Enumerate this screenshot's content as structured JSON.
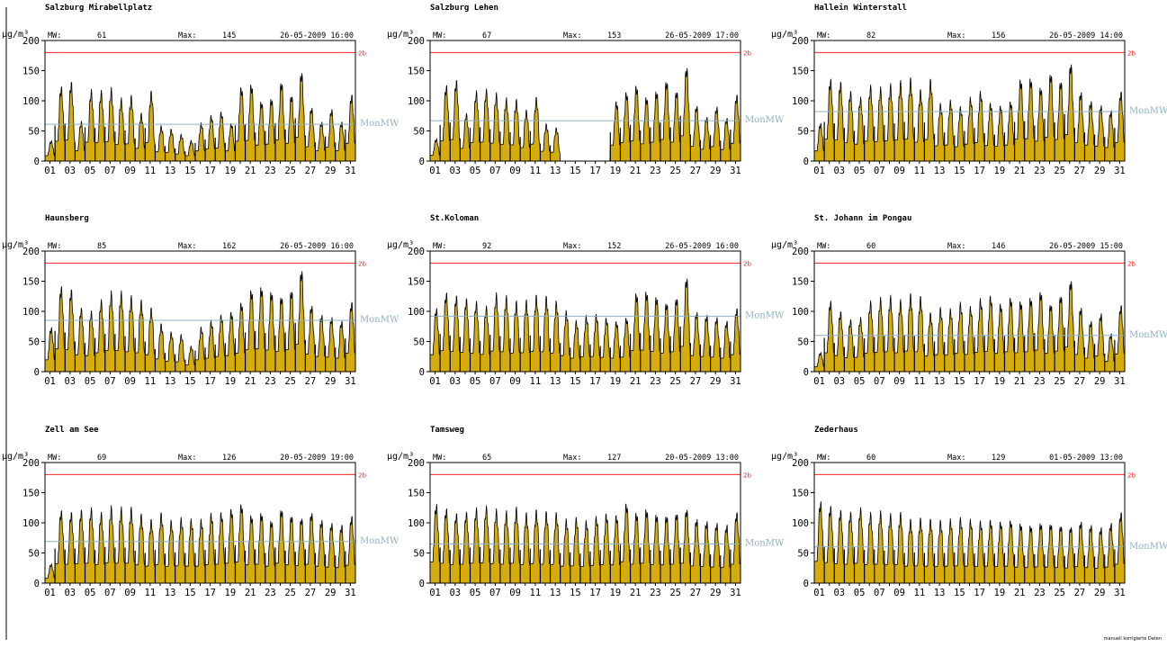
{
  "colors": {
    "fill": "#d4ac0d",
    "outline": "#000000",
    "limit": "#ff2222",
    "mean": "#8fb0c0"
  },
  "footnote": "manuell korrigierte Daten",
  "chart_data": [
    {
      "type": "area",
      "title": "Salzburg Mirabellplatz",
      "ylabel": "µg/m³",
      "mw_label": "MW:",
      "mw": "61",
      "max_label": "Max:",
      "max": "145",
      "max_time": "26-05-2009 16:00",
      "limit_label": "2b",
      "limit": 180,
      "mean_label": "MonMW",
      "mean": 61,
      "ylim": [
        0,
        200
      ],
      "yticks": [
        0,
        50,
        100,
        150,
        200
      ],
      "xticks": [
        "01",
        "03",
        "05",
        "07",
        "09",
        "11",
        "13",
        "15",
        "17",
        "19",
        "21",
        "23",
        "25",
        "27",
        "29",
        "31"
      ],
      "daily_max": [
        32,
        118,
        125,
        62,
        112,
        110,
        114,
        98,
        102,
        75,
        110,
        55,
        50,
        42,
        32,
        60,
        72,
        78,
        60,
        118,
        122,
        95,
        100,
        126,
        105,
        142,
        85,
        62,
        82,
        62,
        105
      ],
      "gap": null
    },
    {
      "type": "area",
      "title": "Salzburg Lehen",
      "ylabel": "µg/m³",
      "mw_label": "MW:",
      "mw": "67",
      "max_label": "Max:",
      "max": "153",
      "max_time": "26-05-2009 17:00",
      "limit_label": "2b",
      "limit": 180,
      "mean_label": "MonMW",
      "mean": 67,
      "ylim": [
        0,
        200
      ],
      "yticks": [
        0,
        50,
        100,
        150,
        200
      ],
      "xticks": [
        "01",
        "03",
        "05",
        "07",
        "09",
        "11",
        "13",
        "15",
        "17",
        "19",
        "21",
        "23",
        "25",
        "27",
        "29",
        "31"
      ],
      "daily_max": [
        35,
        120,
        128,
        75,
        110,
        112,
        106,
        98,
        96,
        80,
        100,
        58,
        52,
        0,
        0,
        0,
        0,
        0,
        95,
        110,
        120,
        102,
        112,
        128,
        112,
        150,
        88,
        70,
        86,
        68,
        105
      ],
      "gap": [
        13.0,
        17.5
      ]
    },
    {
      "type": "area",
      "title": "Hallein Winterstall",
      "ylabel": "µg/m³",
      "mw_label": "MW:",
      "mw": "82",
      "max_label": "Max:",
      "max": "156",
      "max_time": "26-05-2009 14:00",
      "limit_label": "2b",
      "limit": 180,
      "mean_label": "MonMW",
      "mean": 82,
      "ylim": [
        0,
        200
      ],
      "yticks": [
        0,
        50,
        100,
        150,
        200
      ],
      "xticks": [
        "01",
        "03",
        "05",
        "07",
        "09",
        "11",
        "13",
        "15",
        "17",
        "19",
        "21",
        "23",
        "25",
        "27",
        "29",
        "31"
      ],
      "daily_max": [
        60,
        130,
        125,
        110,
        100,
        118,
        115,
        120,
        125,
        130,
        112,
        128,
        90,
        95,
        85,
        100,
        110,
        92,
        88,
        95,
        130,
        132,
        118,
        140,
        128,
        156,
        110,
        95,
        88,
        80,
        110
      ],
      "gap": null
    },
    {
      "type": "area",
      "title": "Haunsberg",
      "ylabel": "µg/m³",
      "mw_label": "MW:",
      "mw": "85",
      "max_label": "Max:",
      "max": "162",
      "max_time": "26-05-2009 16:00",
      "limit_label": "2b",
      "limit": 180,
      "mean_label": "MonMW",
      "mean": 85,
      "ylim": [
        0,
        200
      ],
      "yticks": [
        0,
        50,
        100,
        150,
        200
      ],
      "xticks": [
        "01",
        "03",
        "05",
        "07",
        "09",
        "11",
        "13",
        "15",
        "17",
        "19",
        "21",
        "23",
        "25",
        "27",
        "29",
        "31"
      ],
      "daily_max": [
        70,
        135,
        130,
        100,
        95,
        112,
        125,
        125,
        118,
        112,
        100,
        75,
        62,
        58,
        40,
        70,
        80,
        90,
        95,
        110,
        130,
        135,
        128,
        120,
        130,
        162,
        105,
        90,
        86,
        80,
        110
      ],
      "gap": null
    },
    {
      "type": "area",
      "title": "St.Koloman",
      "ylabel": "µg/m³",
      "mw_label": "MW:",
      "mw": "92",
      "max_label": "Max:",
      "max": "152",
      "max_time": "26-05-2009 16:00",
      "limit_label": "2b",
      "limit": 180,
      "mean_label": "MonMW",
      "mean": 92,
      "ylim": [
        0,
        200
      ],
      "yticks": [
        0,
        50,
        100,
        150,
        200
      ],
      "xticks": [
        "01",
        "03",
        "05",
        "07",
        "09",
        "11",
        "13",
        "15",
        "17",
        "19",
        "21",
        "23",
        "25",
        "27",
        "29",
        "31"
      ],
      "daily_max": [
        100,
        125,
        120,
        115,
        110,
        102,
        122,
        118,
        110,
        112,
        120,
        118,
        110,
        95,
        80,
        88,
        90,
        85,
        80,
        86,
        125,
        128,
        120,
        110,
        118,
        150,
        95,
        90,
        86,
        80,
        100
      ],
      "gap": null
    },
    {
      "type": "area",
      "title": "St. Johann im Pongau",
      "ylabel": "µg/m³",
      "mw_label": "MW:",
      "mw": "60",
      "max_label": "Max:",
      "max": "146",
      "max_time": "26-05-2009 15:00",
      "limit_label": "2b",
      "limit": 180,
      "mean_label": "MonMW",
      "mean": 60,
      "ylim": [
        0,
        200
      ],
      "yticks": [
        0,
        50,
        100,
        150,
        200
      ],
      "xticks": [
        "01",
        "03",
        "05",
        "07",
        "09",
        "11",
        "13",
        "15",
        "17",
        "19",
        "21",
        "23",
        "25",
        "27",
        "29",
        "31"
      ],
      "daily_max": [
        30,
        112,
        95,
        82,
        85,
        110,
        115,
        118,
        112,
        122,
        118,
        92,
        100,
        98,
        108,
        102,
        115,
        120,
        108,
        118,
        112,
        118,
        128,
        108,
        122,
        146,
        102,
        80,
        92,
        60,
        105
      ],
      "gap": null
    },
    {
      "type": "area",
      "title": "Zell am See",
      "ylabel": "µg/m³",
      "mw_label": "MW:",
      "mw": "69",
      "max_label": "Max:",
      "max": "126",
      "max_time": "20-05-2009 19:00",
      "limit_label": "2b",
      "limit": 180,
      "mean_label": "MonMW",
      "mean": 69,
      "ylim": [
        0,
        200
      ],
      "yticks": [
        0,
        50,
        100,
        150,
        200
      ],
      "xticks": [
        "01",
        "03",
        "05",
        "07",
        "09",
        "11",
        "13",
        "15",
        "17",
        "19",
        "21",
        "23",
        "25",
        "27",
        "29",
        "31"
      ],
      "daily_max": [
        30,
        115,
        112,
        115,
        118,
        110,
        120,
        118,
        118,
        108,
        100,
        110,
        98,
        102,
        100,
        100,
        110,
        112,
        118,
        126,
        108,
        112,
        100,
        118,
        108,
        104,
        112,
        100,
        95,
        92,
        106
      ],
      "gap": null
    },
    {
      "type": "area",
      "title": "Tamsweg",
      "ylabel": "µg/m³",
      "mw_label": "MW:",
      "mw": "65",
      "max_label": "Max:",
      "max": "127",
      "max_time": "20-05-2009 13:00",
      "limit_label": "2b",
      "limit": 180,
      "mean_label": "MonMW",
      "mean": 65,
      "ylim": [
        0,
        200
      ],
      "yticks": [
        0,
        50,
        100,
        150,
        200
      ],
      "xticks": [
        "01",
        "03",
        "05",
        "07",
        "09",
        "11",
        "13",
        "15",
        "17",
        "19",
        "21",
        "23",
        "25",
        "27",
        "29",
        "31"
      ],
      "daily_max": [
        125,
        118,
        110,
        112,
        118,
        120,
        115,
        112,
        118,
        110,
        115,
        112,
        110,
        100,
        102,
        98,
        105,
        110,
        108,
        127,
        112,
        118,
        110,
        108,
        112,
        118,
        102,
        98,
        95,
        92,
        112
      ],
      "gap": null
    },
    {
      "type": "area",
      "title": "Zederhaus",
      "ylabel": "µg/m³",
      "mw_label": "MW:",
      "mw": "60",
      "max_label": "Max:",
      "max": "129",
      "max_time": "01-05-2009 13:00",
      "limit_label": "2b",
      "limit": 180,
      "mean_label": "MonMW",
      "mean": 60,
      "ylim": [
        0,
        200
      ],
      "yticks": [
        0,
        50,
        100,
        150,
        200
      ],
      "xticks": [
        "01",
        "03",
        "05",
        "07",
        "09",
        "11",
        "13",
        "15",
        "17",
        "19",
        "21",
        "23",
        "25",
        "27",
        "29",
        "31"
      ],
      "daily_max": [
        129,
        122,
        115,
        112,
        118,
        110,
        112,
        108,
        110,
        100,
        102,
        100,
        98,
        100,
        102,
        100,
        98,
        100,
        98,
        100,
        95,
        92,
        96,
        95,
        92,
        90,
        98,
        92,
        88,
        95,
        112
      ],
      "gap": null
    }
  ]
}
